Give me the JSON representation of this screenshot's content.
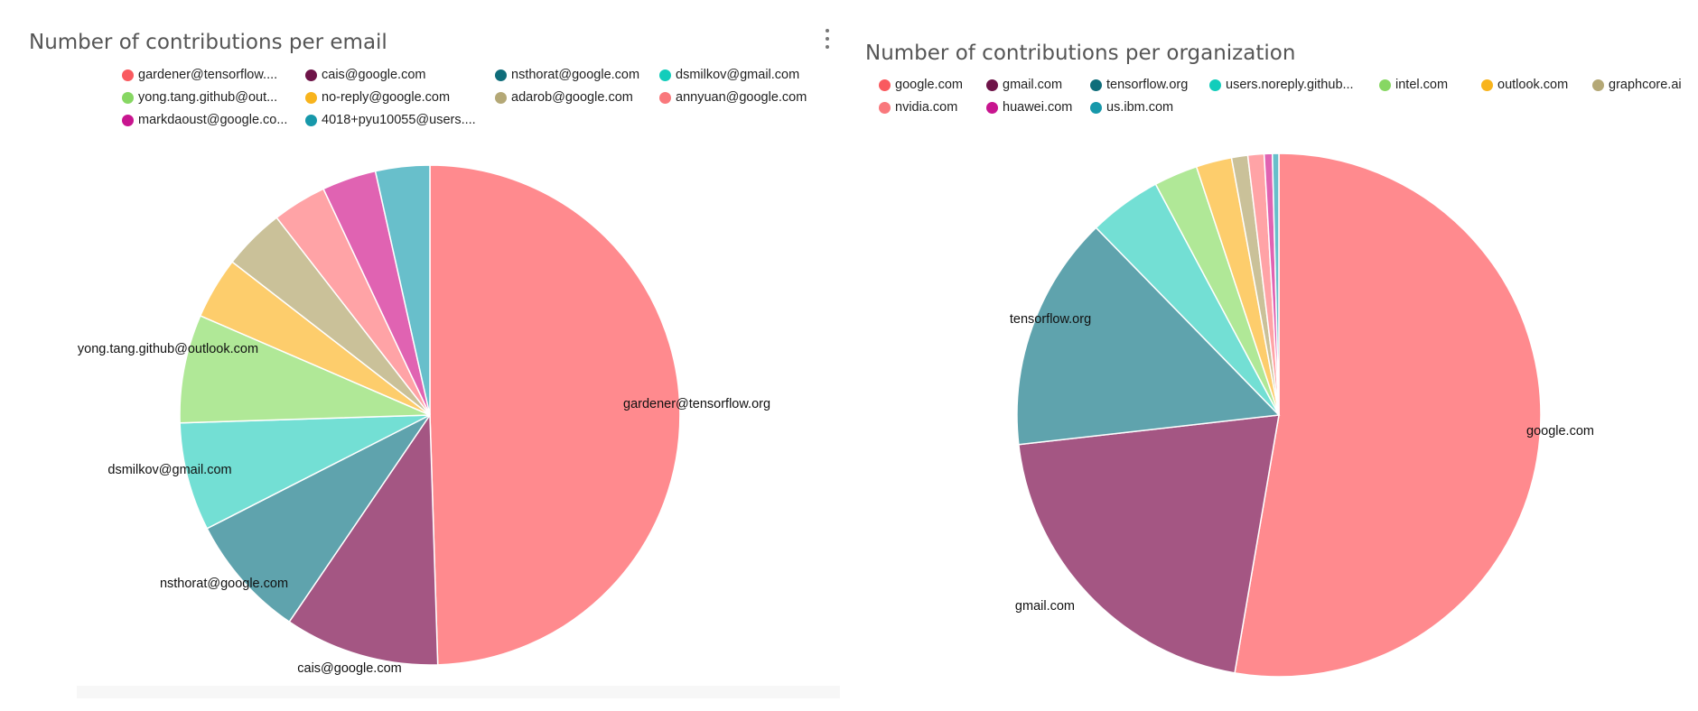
{
  "chart_data": [
    {
      "type": "pie",
      "title": "Number of contributions per email",
      "legend_position": "top",
      "slices": [
        {
          "label": "gardener@tensorflow.org",
          "legend": "gardener@tensorflow....",
          "value": 49.5,
          "color": "#ff8a8e",
          "legend_color": "#f95a5f",
          "show_label": true
        },
        {
          "label": "cais@google.com",
          "legend": "cais@google.com",
          "value": 10.0,
          "color": "#a45683",
          "legend_color": "#6e1448",
          "show_label": true
        },
        {
          "label": "nsthorat@google.com",
          "legend": "nsthorat@google.com",
          "value": 8.0,
          "color": "#5fa3ad",
          "legend_color": "#0f6d7a",
          "show_label": true
        },
        {
          "label": "dsmilkov@gmail.com",
          "legend": "dsmilkov@gmail.com",
          "value": 7.0,
          "color": "#73dfd4",
          "legend_color": "#12cdbb",
          "show_label": true
        },
        {
          "label": "yong.tang.github@outlook.com",
          "legend": "yong.tang.github@out...",
          "value": 7.0,
          "color": "#b0e897",
          "legend_color": "#87d763",
          "show_label": true
        },
        {
          "label": "no-reply@google.com",
          "legend": "no-reply@google.com",
          "value": 4.0,
          "color": "#fdcd6c",
          "legend_color": "#f8b41d",
          "show_label": false
        },
        {
          "label": "adarob@google.com",
          "legend": "adarob@google.com",
          "value": 4.0,
          "color": "#cac199",
          "legend_color": "#b4a876",
          "show_label": false
        },
        {
          "label": "annyuan@google.com",
          "legend": "annyuan@google.com",
          "value": 3.5,
          "color": "#ffa3a6",
          "legend_color": "#f9787c",
          "show_label": false
        },
        {
          "label": "markdaoust@google.com",
          "legend": "markdaoust@google.co...",
          "value": 3.5,
          "color": "#e063b2",
          "legend_color": "#c8158f",
          "show_label": false
        },
        {
          "label": "4018+pyu10055@users.noreply.github.com",
          "legend": "4018+pyu10055@users....",
          "value": 3.5,
          "color": "#68bfcb",
          "legend_color": "#1798aa",
          "show_label": false
        }
      ]
    },
    {
      "type": "pie",
      "title": "Number of contributions per organization",
      "legend_position": "top",
      "slices": [
        {
          "label": "google.com",
          "legend": "google.com",
          "value": 52.7,
          "color": "#ff8a8e",
          "legend_color": "#f95a5f",
          "show_label": true
        },
        {
          "label": "gmail.com",
          "legend": "gmail.com",
          "value": 20.5,
          "color": "#a45683",
          "legend_color": "#6e1448",
          "show_label": true
        },
        {
          "label": "tensorflow.org",
          "legend": "tensorflow.org",
          "value": 14.5,
          "color": "#5fa3ad",
          "legend_color": "#0f6d7a",
          "show_label": true
        },
        {
          "label": "users.noreply.github.com",
          "legend": "users.noreply.github...",
          "value": 4.5,
          "color": "#73dfd4",
          "legend_color": "#12cdbb",
          "show_label": false
        },
        {
          "label": "intel.com",
          "legend": "intel.com",
          "value": 2.7,
          "color": "#b0e897",
          "legend_color": "#87d763",
          "show_label": false
        },
        {
          "label": "outlook.com",
          "legend": "outlook.com",
          "value": 2.2,
          "color": "#fdcd6c",
          "legend_color": "#f8b41d",
          "show_label": false
        },
        {
          "label": "graphcore.ai",
          "legend": "graphcore.ai",
          "value": 1.0,
          "color": "#cac199",
          "legend_color": "#b4a876",
          "show_label": false
        },
        {
          "label": "nvidia.com",
          "legend": "nvidia.com",
          "value": 1.0,
          "color": "#ffa3a6",
          "legend_color": "#f9787c",
          "show_label": false
        },
        {
          "label": "huawei.com",
          "legend": "huawei.com",
          "value": 0.5,
          "color": "#e063b2",
          "legend_color": "#c8158f",
          "show_label": false
        },
        {
          "label": "us.ibm.com",
          "legend": "us.ibm.com",
          "value": 0.4,
          "color": "#68bfcb",
          "legend_color": "#1798aa",
          "show_label": false
        }
      ]
    }
  ]
}
